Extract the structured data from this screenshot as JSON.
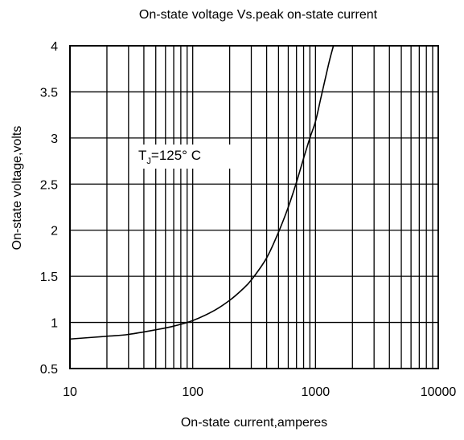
{
  "chart_data": {
    "type": "line",
    "title": "On-state voltage Vs.peak on-state current",
    "xlabel": "On-state current,amperes",
    "ylabel": "On-state voltage,volts",
    "x_scale": "log",
    "xlim": [
      10,
      10000
    ],
    "ylim": [
      0.5,
      4
    ],
    "x_ticks": [
      10,
      100,
      1000,
      10000
    ],
    "x_tick_labels": [
      "10",
      "100",
      "1000",
      "10000"
    ],
    "y_ticks": [
      0.5,
      1,
      1.5,
      2,
      2.5,
      3,
      3.5,
      4
    ],
    "y_tick_labels": [
      "0.5",
      "1",
      "1.5",
      "2",
      "2.5",
      "3",
      "3.5",
      "4"
    ],
    "grid": true,
    "annotation": {
      "main": "T",
      "sub": "J",
      "rest": "=125°  C"
    },
    "series": [
      {
        "x": [
          10,
          20,
          30,
          50,
          70,
          100,
          150,
          200,
          250,
          300,
          400,
          500,
          600,
          700,
          800,
          900,
          1000,
          1100,
          1200,
          1300,
          1400
        ],
        "y": [
          0.82,
          0.85,
          0.87,
          0.92,
          0.96,
          1.02,
          1.13,
          1.24,
          1.35,
          1.46,
          1.7,
          1.98,
          2.25,
          2.52,
          2.78,
          3.0,
          3.18,
          3.42,
          3.64,
          3.84,
          4.0
        ]
      }
    ]
  }
}
